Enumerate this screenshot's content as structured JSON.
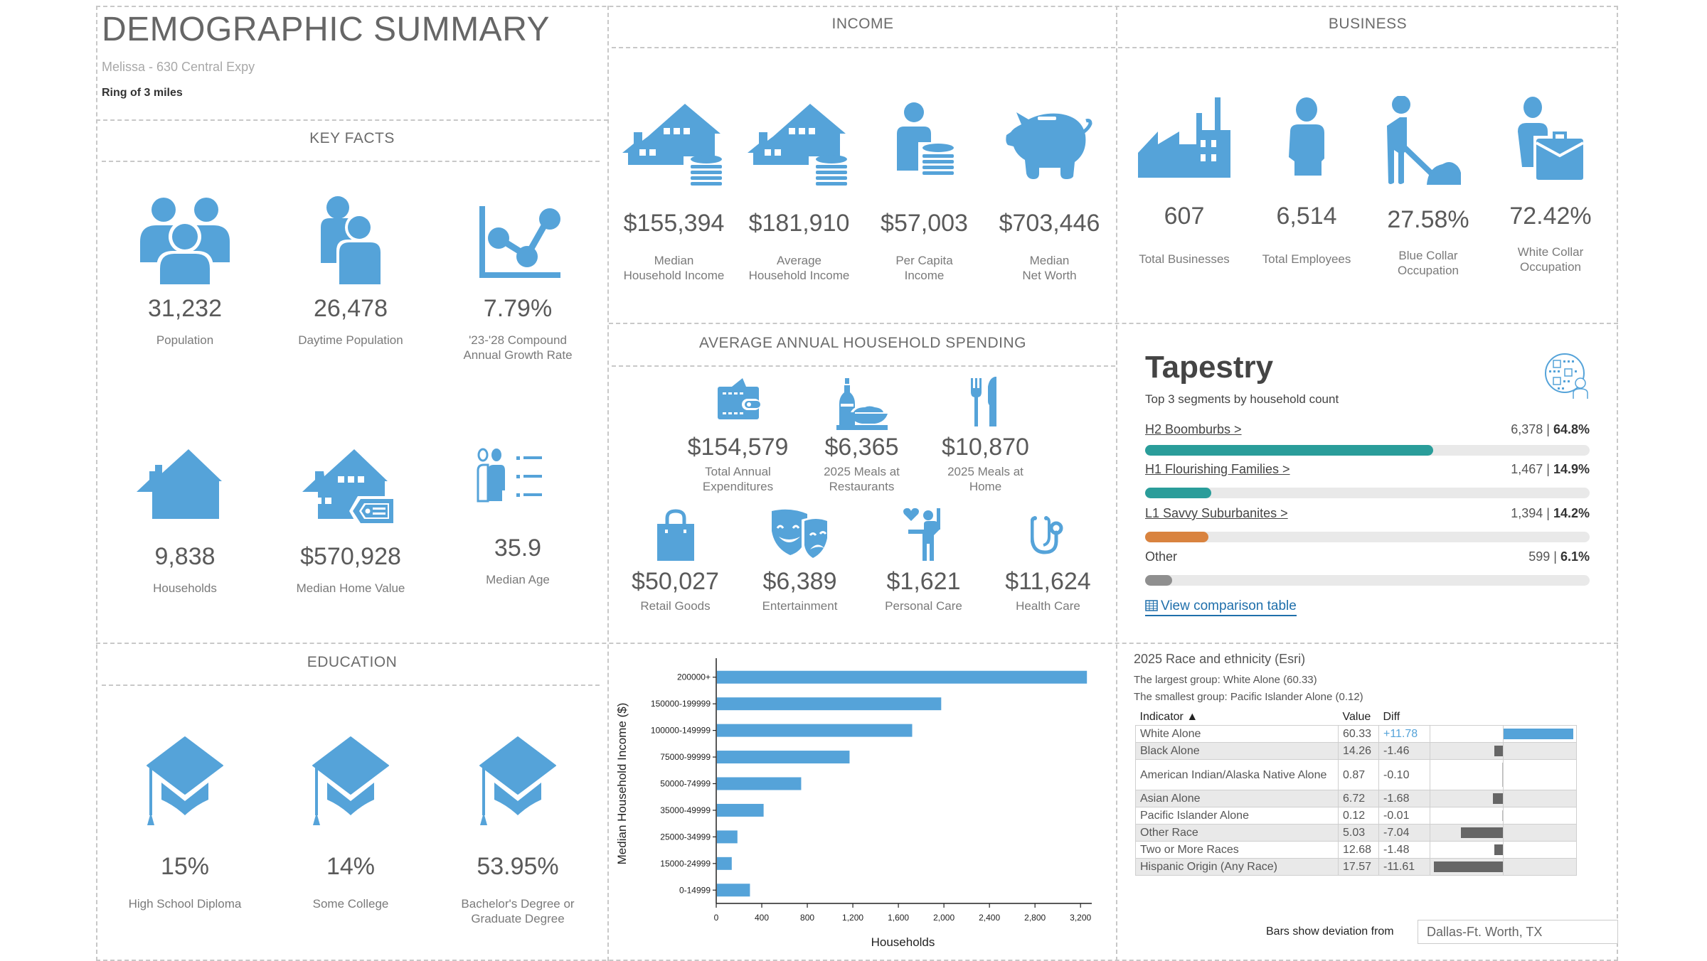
{
  "header": {
    "title": "DEMOGRAPHIC SUMMARY",
    "location": "Melissa - 630 Central Expy",
    "ring": "Ring of 3 miles"
  },
  "key_facts": {
    "title": "KEY FACTS",
    "items": [
      {
        "icon": "people-group-icon",
        "value": "31,232",
        "label": "Population"
      },
      {
        "icon": "daytime-people-icon",
        "value": "26,478",
        "label": "Daytime Population"
      },
      {
        "icon": "growth-chart-icon",
        "value": "7.79%",
        "label": "'23-'28 Compound\nAnnual Growth Rate"
      },
      {
        "icon": "house-icon",
        "value": "9,838",
        "label": "Households"
      },
      {
        "icon": "house-price-tag-icon",
        "value": "$570,928",
        "label": "Median Home Value"
      },
      {
        "icon": "people-age-list-icon",
        "value": "35.9",
        "label": "Median Age"
      }
    ]
  },
  "income": {
    "title": "INCOME",
    "items": [
      {
        "icon": "house-coins-icon",
        "value": "$155,394",
        "label": "Median\nHousehold Income"
      },
      {
        "icon": "house-coins-icon",
        "value": "$181,910",
        "label": "Average\nHousehold Income"
      },
      {
        "icon": "person-coins-icon",
        "value": "$57,003",
        "label": "Per Capita\nIncome"
      },
      {
        "icon": "piggy-bank-icon",
        "value": "$703,446",
        "label": "Median\nNet Worth"
      }
    ]
  },
  "business": {
    "title": "BUSINESS",
    "items": [
      {
        "icon": "factory-icon",
        "value": "607",
        "label": "Total Businesses"
      },
      {
        "icon": "employee-icon",
        "value": "6,514",
        "label": "Total Employees"
      },
      {
        "icon": "blue-collar-worker-icon",
        "value": "27.58%",
        "label": "Blue Collar\nOccupation"
      },
      {
        "icon": "white-collar-briefcase-icon",
        "value": "72.42%",
        "label": "White Collar\nOccupation"
      }
    ]
  },
  "spending": {
    "title": "AVERAGE ANNUAL HOUSEHOLD SPENDING",
    "items": [
      {
        "icon": "wallet-icon",
        "value": "$154,579",
        "label": "Total Annual\nExpenditures"
      },
      {
        "icon": "restaurant-meal-icon",
        "value": "$6,365",
        "label": "2025 Meals at\nRestaurants"
      },
      {
        "icon": "fork-knife-icon",
        "value": "$10,870",
        "label": "2025 Meals at\nHome"
      },
      {
        "icon": "shopping-bag-icon",
        "value": "$50,027",
        "label": "Retail Goods"
      },
      {
        "icon": "theater-masks-icon",
        "value": "$6,389",
        "label": "Entertainment"
      },
      {
        "icon": "personal-care-icon",
        "value": "$1,621",
        "label": "Personal Care"
      },
      {
        "icon": "stethoscope-icon",
        "value": "$11,624",
        "label": "Health Care"
      }
    ]
  },
  "tapestry": {
    "title": "Tapestry",
    "subtitle": "Top 3 segments by household count",
    "segments": [
      {
        "name": "H2 Boomburbs >",
        "count": "6,378",
        "pct": "64.8%",
        "share": 0.648,
        "color": "#2a9d9a",
        "link": true
      },
      {
        "name": "H1 Flourishing Families >",
        "count": "1,467",
        "pct": "14.9%",
        "share": 0.149,
        "color": "#2a9d9a",
        "link": true
      },
      {
        "name": "L1 Savvy Suburbanites >",
        "count": "1,394",
        "pct": "14.2%",
        "share": 0.142,
        "color": "#d9833f",
        "link": true
      },
      {
        "name": "Other",
        "count": "599",
        "pct": "6.1%",
        "share": 0.061,
        "color": "#8f8f8f",
        "link": false
      }
    ],
    "link_label": "View comparison table"
  },
  "education": {
    "title": "EDUCATION",
    "items": [
      {
        "icon": "graduation-cap-icon",
        "value": "15%",
        "label": "High School Diploma"
      },
      {
        "icon": "graduation-cap-icon",
        "value": "14%",
        "label": "Some College"
      },
      {
        "icon": "graduation-cap-icon",
        "value": "53.95%",
        "label": "Bachelor's Degree or\nGraduate Degree"
      }
    ]
  },
  "chart_data": {
    "type": "bar",
    "orientation": "horizontal",
    "title": "",
    "xlabel": "Households",
    "ylabel": "Median Household Income ($)",
    "categories": [
      "200000+",
      "150000-199999",
      "100000-149999",
      "75000-99999",
      "50000-74999",
      "35000-49999",
      "25000-34999",
      "15000-24999",
      "0-14999"
    ],
    "values": [
      3250,
      1970,
      1715,
      1165,
      740,
      410,
      180,
      130,
      290
    ],
    "xlim": [
      0,
      3280
    ],
    "xticks": [
      0,
      400,
      800,
      1200,
      1600,
      2000,
      2400,
      2800,
      3200
    ],
    "xtick_labels": [
      "0",
      "400",
      "800",
      "1,200",
      "1,600",
      "2,000",
      "2,400",
      "2,800",
      "3,200"
    ],
    "grid": false,
    "color": "#55a3d9"
  },
  "race": {
    "title": "2025 Race and ethnicity (Esri)",
    "largest": "The largest group: White Alone (60.33)",
    "smallest": "The smallest group: Pacific Islander Alone (0.12)",
    "columns": [
      "Indicator ▲",
      "Value",
      "Diff"
    ],
    "rows": [
      {
        "indicator": "White Alone",
        "value": "60.33",
        "diff": "+11.78",
        "diff_num": 11.78
      },
      {
        "indicator": "Black Alone",
        "value": "14.26",
        "diff": "-1.46",
        "diff_num": -1.46
      },
      {
        "indicator": "American Indian/Alaska Native Alone",
        "value": "0.87",
        "diff": "-0.10",
        "diff_num": -0.1
      },
      {
        "indicator": "Asian Alone",
        "value": "6.72",
        "diff": "-1.68",
        "diff_num": -1.68
      },
      {
        "indicator": "Pacific Islander Alone",
        "value": "0.12",
        "diff": "-0.01",
        "diff_num": -0.01
      },
      {
        "indicator": "Other Race",
        "value": "5.03",
        "diff": "-7.04",
        "diff_num": -7.04
      },
      {
        "indicator": "Two or More Races",
        "value": "12.68",
        "diff": "-1.48",
        "diff_num": -1.48
      },
      {
        "indicator": "Hispanic Origin (Any Race)",
        "value": "17.57",
        "diff": "-11.61",
        "diff_num": -11.61
      }
    ],
    "positive_color": "#55a3d9",
    "negative_color": "#666666",
    "deviation_label": "Bars show deviation from",
    "deviation_value": "Dallas-Ft. Worth, TX"
  }
}
